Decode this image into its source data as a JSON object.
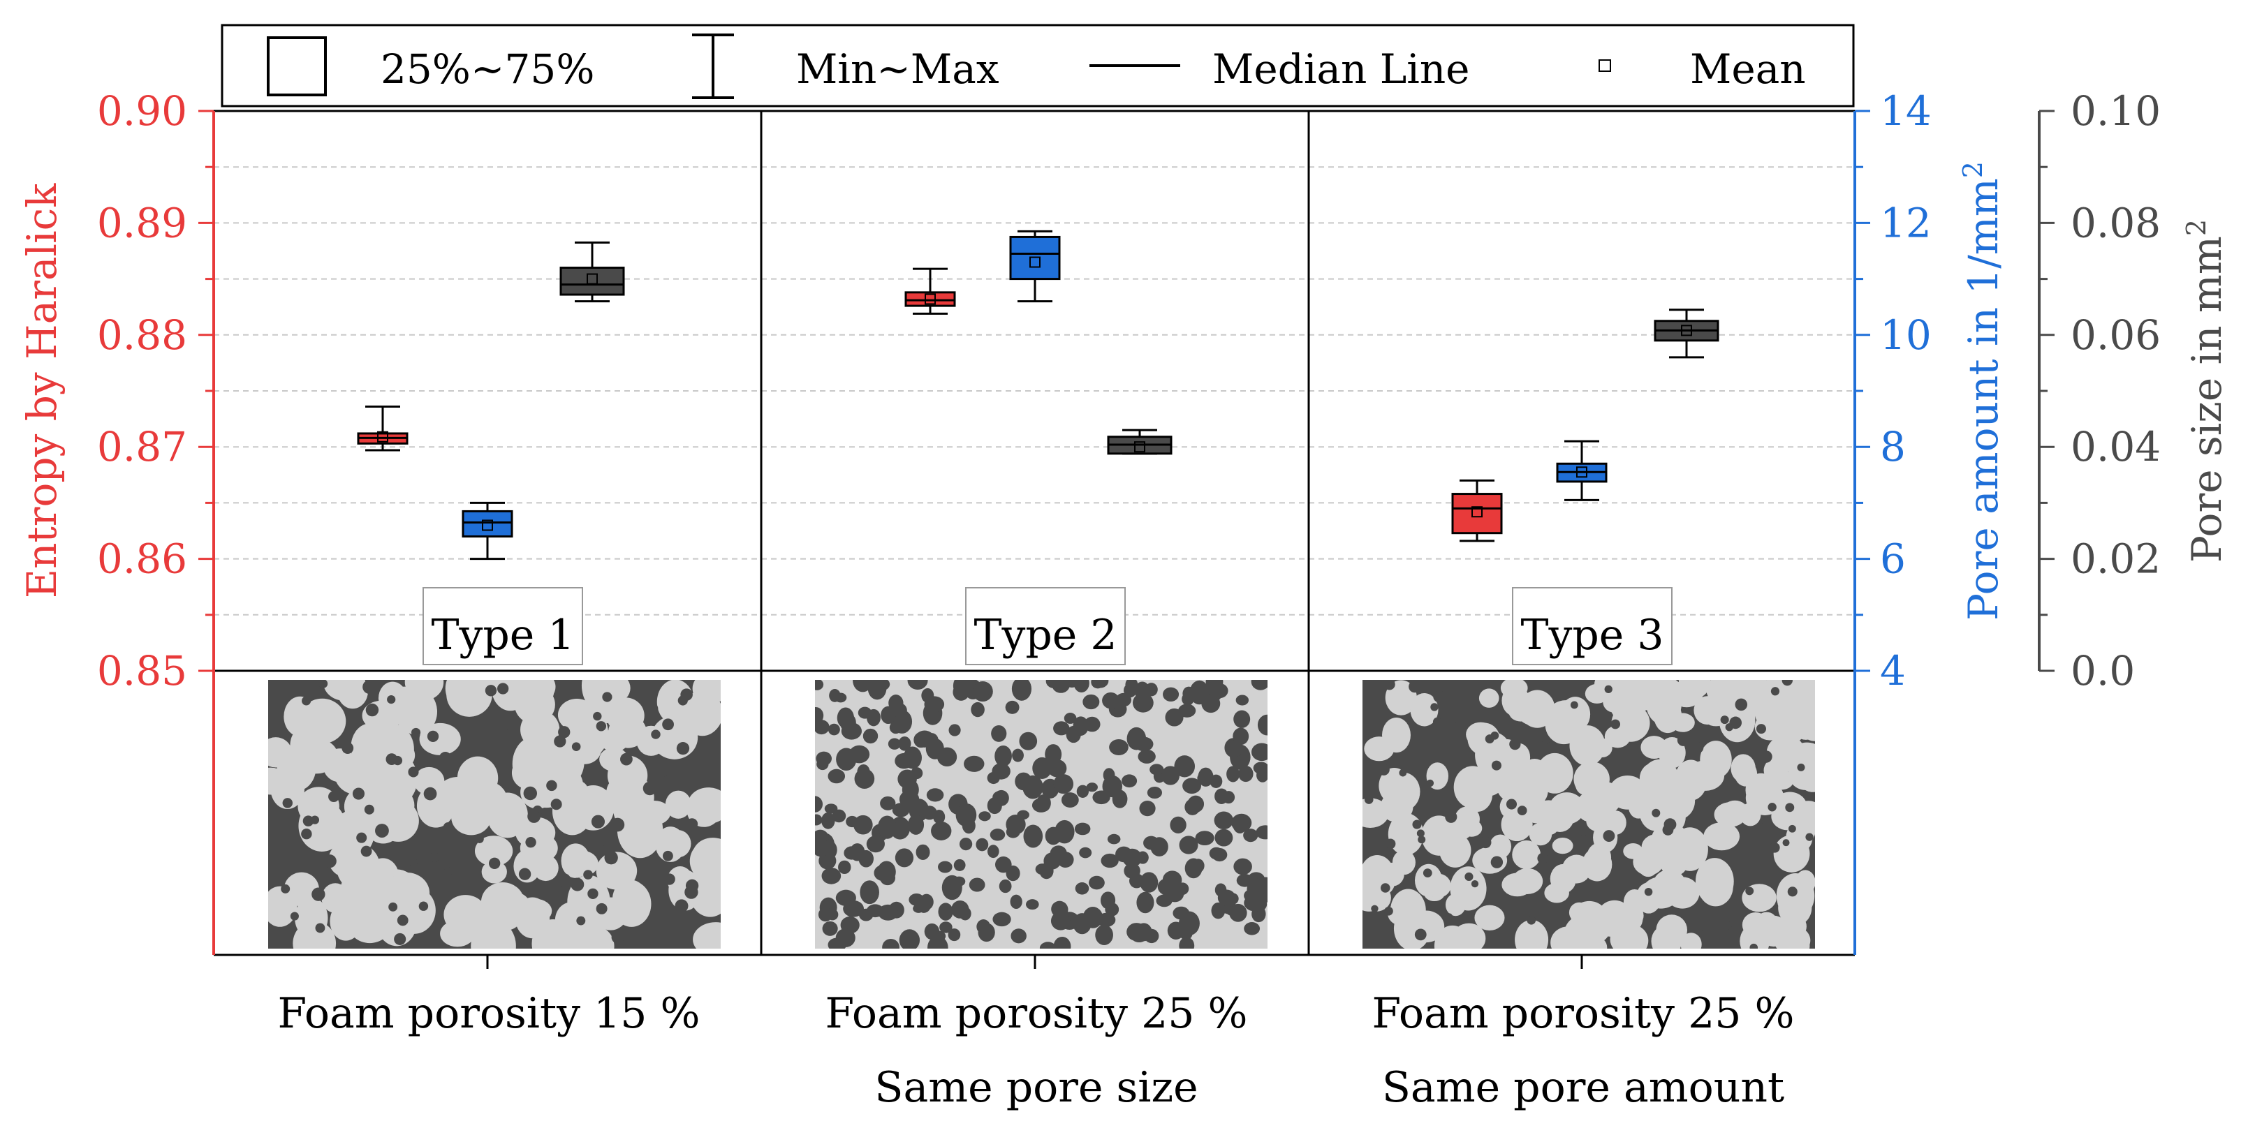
{
  "colors": {
    "entropy": "#e83a3a",
    "pore_amount": "#1f6fd8",
    "pore_size": "#4a4a4a",
    "foam_light": "#d2d2d2",
    "foam_dark": "#4a4a4a"
  },
  "legend": {
    "box_label": "25%~75%",
    "whisker_label": "Min~Max",
    "median_label": "Median Line",
    "mean_label": "Mean"
  },
  "chart_data": {
    "type": "box",
    "axes": {
      "left": {
        "label": "Entropy by Haralick",
        "range": [
          0.85,
          0.9
        ],
        "ticks": [
          "0.85",
          "0.86",
          "0.87",
          "0.88",
          "0.89",
          "0.90"
        ],
        "color": "#e83a3a"
      },
      "right1": {
        "label_main": "Pore amount in 1/mm",
        "label_sup": "2",
        "range": [
          4,
          14
        ],
        "ticks": [
          "4",
          "6",
          "8",
          "10",
          "12",
          "14"
        ],
        "color": "#1f6fd8"
      },
      "right2": {
        "label_main": "Pore size in mm",
        "label_sup": "2",
        "range": [
          0.0,
          0.1
        ],
        "ticks": [
          "0.0",
          "0.02",
          "0.04",
          "0.06",
          "0.08",
          "0.10"
        ],
        "color": "#4a4a4a"
      }
    },
    "groups": [
      {
        "type_label": "Type 1",
        "x_label_1": "Foam porosity 15 %",
        "x_label_2": "",
        "entropy": {
          "min": 0.8697,
          "q1": 0.8703,
          "median": 0.8708,
          "q3": 0.8712,
          "max": 0.8736,
          "mean": 0.8709
        },
        "pore_amount": {
          "min": 6.0,
          "q1": 6.4,
          "median": 6.65,
          "q3": 6.85,
          "max": 7.0,
          "mean": 6.6
        },
        "pore_size": {
          "min": 0.066,
          "q1": 0.0672,
          "median": 0.069,
          "q3": 0.072,
          "max": 0.0765,
          "mean": 0.07
        }
      },
      {
        "type_label": "Type 2",
        "x_label_1": "Foam porosity 25 %",
        "x_label_2": "Same pore size",
        "entropy": {
          "min": 0.8819,
          "q1": 0.8826,
          "median": 0.8831,
          "q3": 0.8838,
          "max": 0.8859,
          "mean": 0.8832
        },
        "pore_amount": {
          "min": 10.6,
          "q1": 11.0,
          "median": 11.45,
          "q3": 11.75,
          "max": 11.85,
          "mean": 11.3
        },
        "pore_size": {
          "min": 0.0388,
          "q1": 0.0388,
          "median": 0.0404,
          "q3": 0.0418,
          "max": 0.043,
          "mean": 0.04
        }
      },
      {
        "type_label": "Type 3",
        "x_label_1": "Foam porosity 25 %",
        "x_label_2": "Same pore amount",
        "entropy": {
          "min": 0.8616,
          "q1": 0.8623,
          "median": 0.8645,
          "q3": 0.8658,
          "max": 0.867,
          "mean": 0.8642
        },
        "pore_amount": {
          "min": 7.05,
          "q1": 7.38,
          "median": 7.55,
          "q3": 7.7,
          "max": 8.1,
          "mean": 7.55
        },
        "pore_size": {
          "min": 0.056,
          "q1": 0.059,
          "median": 0.0608,
          "q3": 0.0625,
          "max": 0.0645,
          "mean": 0.0608
        }
      }
    ]
  }
}
